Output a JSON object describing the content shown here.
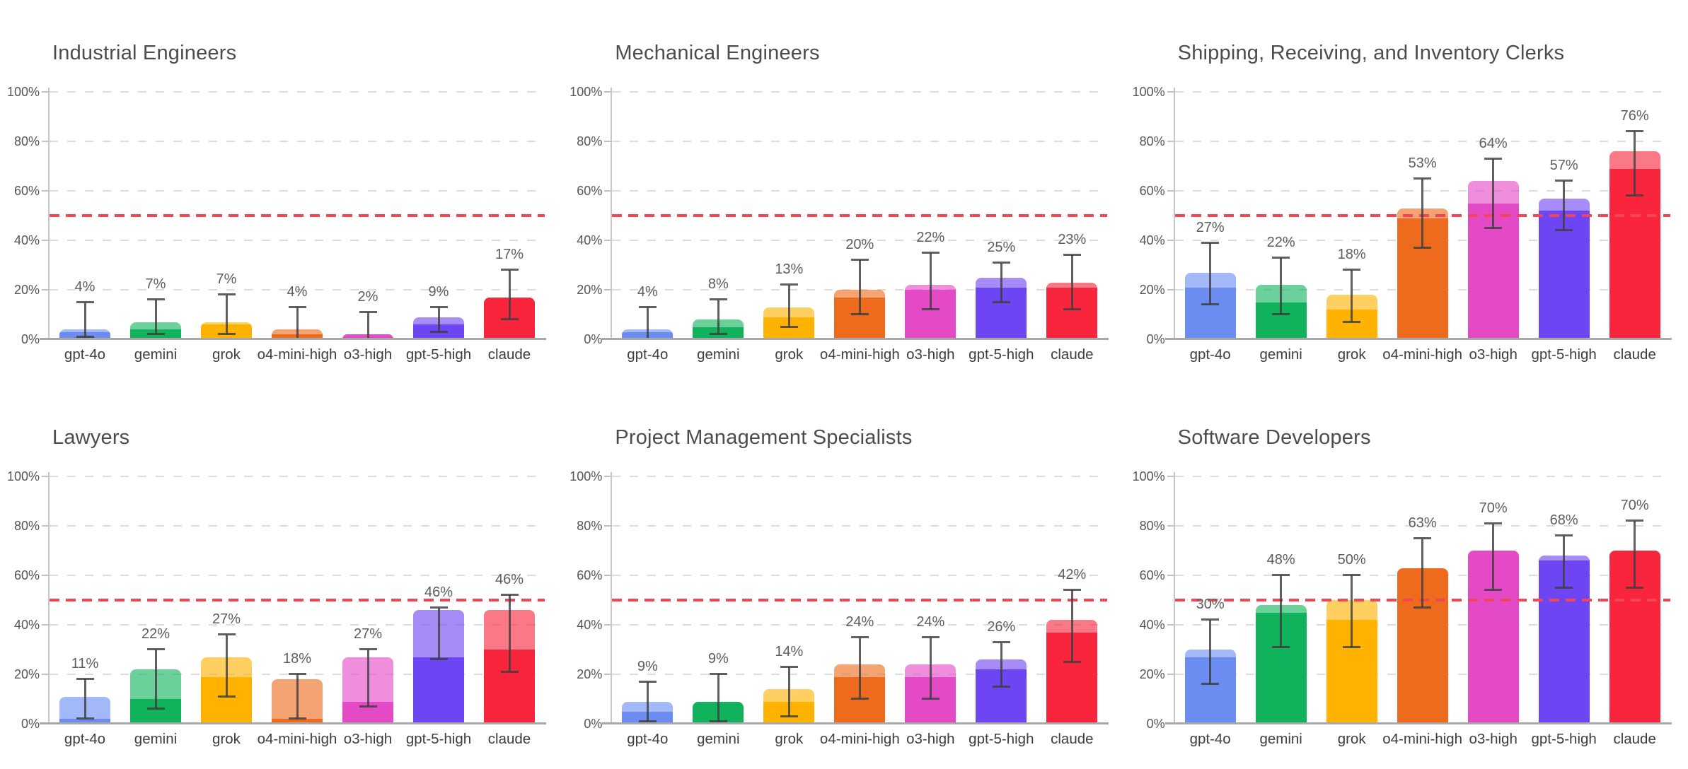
{
  "page": {
    "background": "#ffffff"
  },
  "models": [
    "gpt-4o",
    "gemini",
    "grok",
    "o4-mini-high",
    "o3-high",
    "gpt-5-high",
    "claude"
  ],
  "model_colors": {
    "gpt-4o": "#6b8df1",
    "gemini": "#10b35c",
    "grok": "#ffb300",
    "o4-mini-high": "#ee6a1c",
    "o3-high": "#e449c6",
    "gpt-5-high": "#6d45f2",
    "claude": "#f8253c"
  },
  "axis": {
    "y_ticks": [
      0,
      20,
      40,
      60,
      80,
      100
    ],
    "y_tick_labels": [
      "0%",
      "20%",
      "40%",
      "60%",
      "80%",
      "100%"
    ],
    "ylim": [
      0,
      100
    ]
  },
  "threshold": {
    "value": 50,
    "color": "#f44556",
    "style": "dashed"
  },
  "chart_data": [
    {
      "type": "bar",
      "title": "Industrial Engineers",
      "categories": [
        "gpt-4o",
        "gemini",
        "grok",
        "o4-mini-high",
        "o3-high",
        "gpt-5-high",
        "claude"
      ],
      "values": [
        4,
        7,
        7,
        4,
        2,
        9,
        17
      ],
      "solid_values": [
        3,
        4,
        6,
        2,
        2,
        6,
        17
      ],
      "error_low": [
        1,
        2,
        2,
        0,
        0,
        3,
        8
      ],
      "error_high": [
        15,
        16,
        18,
        13,
        11,
        13,
        28
      ],
      "labels": [
        "4%",
        "7%",
        "7%",
        "4%",
        "2%",
        "9%",
        "17%"
      ],
      "ylim": [
        0,
        100
      ],
      "grid": true,
      "reference_line_y": 50
    },
    {
      "type": "bar",
      "title": "Mechanical Engineers",
      "categories": [
        "gpt-4o",
        "gemini",
        "grok",
        "o4-mini-high",
        "o3-high",
        "gpt-5-high",
        "claude"
      ],
      "values": [
        4,
        8,
        13,
        20,
        22,
        25,
        23
      ],
      "solid_values": [
        3,
        5,
        9,
        17,
        20,
        21,
        21
      ],
      "error_low": [
        0,
        2,
        5,
        10,
        12,
        15,
        12
      ],
      "error_high": [
        13,
        16,
        22,
        32,
        35,
        31,
        34
      ],
      "labels": [
        "4%",
        "8%",
        "13%",
        "20%",
        "22%",
        "25%",
        "23%"
      ],
      "ylim": [
        0,
        100
      ],
      "grid": true,
      "reference_line_y": 50
    },
    {
      "type": "bar",
      "title": "Shipping, Receiving, and Inventory Clerks",
      "categories": [
        "gpt-4o",
        "gemini",
        "grok",
        "o4-mini-high",
        "o3-high",
        "gpt-5-high",
        "claude"
      ],
      "values": [
        27,
        22,
        18,
        53,
        64,
        57,
        76
      ],
      "solid_values": [
        21,
        15,
        12,
        49,
        55,
        52,
        69
      ],
      "error_low": [
        14,
        10,
        7,
        37,
        45,
        44,
        58
      ],
      "error_high": [
        39,
        33,
        28,
        65,
        73,
        64,
        84
      ],
      "labels": [
        "27%",
        "22%",
        "18%",
        "53%",
        "64%",
        "57%",
        "76%"
      ],
      "ylim": [
        0,
        100
      ],
      "grid": true,
      "reference_line_y": 50
    },
    {
      "type": "bar",
      "title": "Lawyers",
      "categories": [
        "gpt-4o",
        "gemini",
        "grok",
        "o4-mini-high",
        "o3-high",
        "gpt-5-high",
        "claude"
      ],
      "values": [
        11,
        22,
        27,
        18,
        27,
        46,
        46
      ],
      "solid_values": [
        2,
        10,
        19,
        2,
        9,
        27,
        30
      ],
      "error_low": [
        2,
        6,
        11,
        2,
        7,
        26,
        21
      ],
      "error_high": [
        18,
        30,
        36,
        20,
        30,
        47,
        52
      ],
      "labels": [
        "11%",
        "22%",
        "27%",
        "18%",
        "27%",
        "46%",
        "46%"
      ],
      "ylim": [
        0,
        100
      ],
      "grid": true,
      "reference_line_y": 50
    },
    {
      "type": "bar",
      "title": "Project Management Specialists",
      "categories": [
        "gpt-4o",
        "gemini",
        "grok",
        "o4-mini-high",
        "o3-high",
        "gpt-5-high",
        "claude"
      ],
      "values": [
        9,
        9,
        14,
        24,
        24,
        26,
        42
      ],
      "solid_values": [
        5,
        9,
        9,
        19,
        19,
        22,
        37
      ],
      "error_low": [
        1,
        1,
        3,
        10,
        10,
        15,
        25
      ],
      "error_high": [
        17,
        20,
        23,
        35,
        35,
        33,
        54
      ],
      "labels": [
        "9%",
        "9%",
        "14%",
        "24%",
        "24%",
        "26%",
        "42%"
      ],
      "ylim": [
        0,
        100
      ],
      "grid": true,
      "reference_line_y": 50
    },
    {
      "type": "bar",
      "title": "Software Developers",
      "categories": [
        "gpt-4o",
        "gemini",
        "grok",
        "o4-mini-high",
        "o3-high",
        "gpt-5-high",
        "claude"
      ],
      "values": [
        30,
        48,
        50,
        63,
        70,
        68,
        70
      ],
      "solid_values": [
        27,
        45,
        42,
        63,
        70,
        66,
        70
      ],
      "error_low": [
        16,
        31,
        31,
        47,
        54,
        55,
        55
      ],
      "error_high": [
        42,
        60,
        60,
        75,
        81,
        76,
        82
      ],
      "labels": [
        "30%",
        "48%",
        "50%",
        "63%",
        "70%",
        "68%",
        "70%"
      ],
      "ylim": [
        0,
        100
      ],
      "grid": true,
      "reference_line_y": 50
    }
  ]
}
